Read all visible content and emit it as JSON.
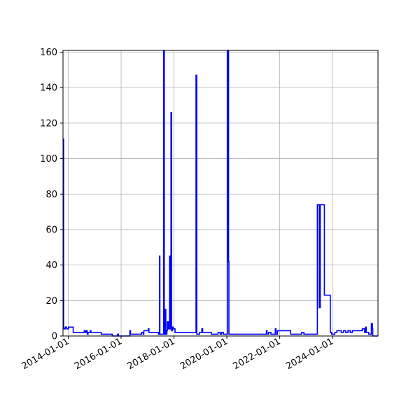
{
  "chart_data": {
    "type": "line",
    "title": "",
    "xlabel": "",
    "ylabel": "",
    "x_axis_type": "date",
    "xlim": [
      "2013-10-20",
      "2025-09-20"
    ],
    "ylim": [
      0,
      161
    ],
    "grid": true,
    "legend": "none",
    "x_ticks": [
      "2014-01-01",
      "2016-01-01",
      "2018-01-01",
      "2020-01-01",
      "2022-01-01",
      "2024-01-01"
    ],
    "y_ticks": [
      0,
      20,
      40,
      60,
      80,
      100,
      120,
      140,
      160
    ],
    "series": [
      {
        "name": "",
        "color": "#0000ff",
        "step": true,
        "points": [
          [
            "2013-10-20",
            111
          ],
          [
            "2013-10-28",
            4
          ],
          [
            "2013-11-20",
            5
          ],
          [
            "2013-12-10",
            4
          ],
          [
            "2014-01-05",
            5
          ],
          [
            "2014-02-20",
            5
          ],
          [
            "2014-03-10",
            2
          ],
          [
            "2014-08-01",
            2
          ],
          [
            "2014-08-10",
            3
          ],
          [
            "2014-08-25",
            2
          ],
          [
            "2014-09-10",
            3
          ],
          [
            "2014-09-20",
            1
          ],
          [
            "2014-10-01",
            2
          ],
          [
            "2014-11-01",
            3
          ],
          [
            "2014-11-10",
            2
          ],
          [
            "2015-04-01",
            1
          ],
          [
            "2015-09-01",
            0
          ],
          [
            "2015-11-10",
            1
          ],
          [
            "2015-11-25",
            0
          ],
          [
            "2016-05-01",
            3
          ],
          [
            "2016-05-10",
            1
          ],
          [
            "2016-10-10",
            2
          ],
          [
            "2016-11-01",
            1
          ],
          [
            "2016-11-10",
            3
          ],
          [
            "2017-01-10",
            4
          ],
          [
            "2017-01-20",
            2
          ],
          [
            "2017-06-01",
            1
          ],
          [
            "2017-06-15",
            45
          ],
          [
            "2017-06-20",
            1
          ],
          [
            "2017-08-10",
            161
          ],
          [
            "2017-08-20",
            1
          ],
          [
            "2017-09-05",
            15
          ],
          [
            "2017-09-10",
            1
          ],
          [
            "2017-09-25",
            3
          ],
          [
            "2017-10-01",
            8
          ],
          [
            "2017-10-15",
            4
          ],
          [
            "2017-11-01",
            45
          ],
          [
            "2017-11-10",
            4
          ],
          [
            "2017-11-20",
            126
          ],
          [
            "2017-11-28",
            3
          ],
          [
            "2017-12-10",
            5
          ],
          [
            "2017-12-20",
            4
          ],
          [
            "2018-01-15",
            2
          ],
          [
            "2018-11-01",
            147
          ],
          [
            "2018-11-12",
            1
          ],
          [
            "2018-12-20",
            2
          ],
          [
            "2019-01-20",
            4
          ],
          [
            "2019-02-01",
            2
          ],
          [
            "2019-06-01",
            1
          ],
          [
            "2019-09-01",
            2
          ],
          [
            "2019-10-01",
            1
          ],
          [
            "2019-10-20",
            2
          ],
          [
            "2019-11-15",
            1
          ],
          [
            "2020-01-10",
            161
          ],
          [
            "2020-01-25",
            42
          ],
          [
            "2020-01-30",
            1
          ],
          [
            "2021-07-01",
            3
          ],
          [
            "2021-07-10",
            1
          ],
          [
            "2021-08-01",
            2
          ],
          [
            "2021-09-01",
            1
          ],
          [
            "2021-11-01",
            4
          ],
          [
            "2021-11-10",
            1
          ],
          [
            "2021-12-01",
            3
          ],
          [
            "2022-06-01",
            1
          ],
          [
            "2022-11-01",
            2
          ],
          [
            "2022-12-01",
            1
          ],
          [
            "2023-06-05",
            74
          ],
          [
            "2023-07-01",
            16
          ],
          [
            "2023-07-15",
            74
          ],
          [
            "2023-09-10",
            23
          ],
          [
            "2023-12-01",
            2
          ],
          [
            "2023-12-20",
            1
          ],
          [
            "2024-02-01",
            2
          ],
          [
            "2024-03-01",
            3
          ],
          [
            "2024-05-01",
            2
          ],
          [
            "2024-06-01",
            3
          ],
          [
            "2024-07-01",
            2
          ],
          [
            "2024-08-01",
            3
          ],
          [
            "2024-09-01",
            2
          ],
          [
            "2024-10-01",
            3
          ],
          [
            "2024-11-15",
            3
          ],
          [
            "2025-02-15",
            4
          ],
          [
            "2025-03-20",
            2
          ],
          [
            "2025-04-01",
            5
          ],
          [
            "2025-04-10",
            2
          ],
          [
            "2025-05-15",
            1
          ],
          [
            "2025-06-20",
            7
          ],
          [
            "2025-07-05",
            4
          ],
          [
            "2025-07-10",
            0
          ],
          [
            "2025-09-20",
            0
          ]
        ]
      }
    ]
  }
}
